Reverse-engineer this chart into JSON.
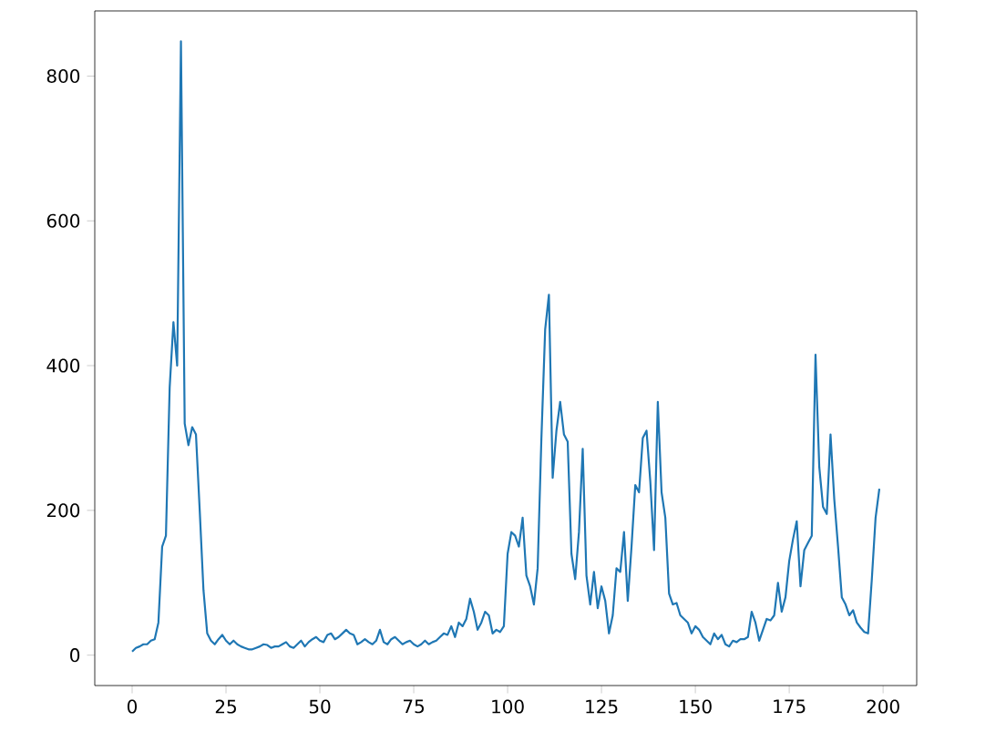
{
  "chart_data": {
    "type": "line",
    "xlim": [
      -9.95,
      208.95
    ],
    "ylim": [
      -42,
      890
    ],
    "xticks": [
      0,
      25,
      50,
      75,
      100,
      125,
      150,
      175,
      200
    ],
    "yticks": [
      0,
      200,
      400,
      600,
      800
    ],
    "grid": false,
    "marker": "none",
    "line_style": "solid",
    "series": [
      {
        "color": "#1f77b4",
        "x": [
          0,
          1,
          2,
          3,
          4,
          5,
          6,
          7,
          8,
          9,
          10,
          11,
          12,
          13,
          14,
          15,
          16,
          17,
          18,
          19,
          20,
          21,
          22,
          23,
          24,
          25,
          26,
          27,
          28,
          29,
          30,
          31,
          32,
          33,
          34,
          35,
          36,
          37,
          38,
          39,
          40,
          41,
          42,
          43,
          44,
          45,
          46,
          47,
          48,
          49,
          50,
          51,
          52,
          53,
          54,
          55,
          56,
          57,
          58,
          59,
          60,
          61,
          62,
          63,
          64,
          65,
          66,
          67,
          68,
          69,
          70,
          71,
          72,
          73,
          74,
          75,
          76,
          77,
          78,
          79,
          80,
          81,
          82,
          83,
          84,
          85,
          86,
          87,
          88,
          89,
          90,
          91,
          92,
          93,
          94,
          95,
          96,
          97,
          98,
          99,
          100,
          101,
          102,
          103,
          104,
          105,
          106,
          107,
          108,
          109,
          110,
          111,
          112,
          113,
          114,
          115,
          116,
          117,
          118,
          119,
          120,
          121,
          122,
          123,
          124,
          125,
          126,
          127,
          128,
          129,
          130,
          131,
          132,
          133,
          134,
          135,
          136,
          137,
          138,
          139,
          140,
          141,
          142,
          143,
          144,
          145,
          146,
          147,
          148,
          149,
          150,
          151,
          152,
          153,
          154,
          155,
          156,
          157,
          158,
          159,
          160,
          161,
          162,
          163,
          164,
          165,
          166,
          167,
          168,
          169,
          170,
          171,
          172,
          173,
          174,
          175,
          176,
          177,
          178,
          179,
          180,
          181,
          182,
          183,
          184,
          185,
          186,
          187,
          188,
          189,
          190,
          191,
          192,
          193,
          194,
          195,
          196,
          197,
          198,
          199
        ],
        "values": [
          5,
          10,
          12,
          15,
          15,
          20,
          22,
          45,
          150,
          165,
          370,
          460,
          400,
          848,
          320,
          290,
          315,
          305,
          200,
          90,
          30,
          20,
          15,
          22,
          28,
          20,
          15,
          20,
          15,
          12,
          10,
          8,
          8,
          10,
          12,
          15,
          14,
          10,
          12,
          12,
          15,
          18,
          12,
          10,
          15,
          20,
          12,
          18,
          22,
          25,
          20,
          18,
          28,
          30,
          22,
          25,
          30,
          35,
          30,
          28,
          15,
          18,
          22,
          18,
          15,
          20,
          35,
          18,
          15,
          22,
          25,
          20,
          15,
          18,
          20,
          15,
          12,
          15,
          20,
          15,
          18,
          20,
          25,
          30,
          28,
          40,
          25,
          45,
          40,
          50,
          78,
          60,
          35,
          45,
          60,
          55,
          30,
          35,
          32,
          40,
          140,
          170,
          165,
          150,
          190,
          110,
          95,
          70,
          120,
          300,
          450,
          498,
          245,
          310,
          350,
          305,
          295,
          140,
          105,
          170,
          285,
          110,
          70,
          115,
          65,
          95,
          75,
          30,
          55,
          120,
          115,
          170,
          75,
          150,
          235,
          225,
          300,
          310,
          240,
          145,
          350,
          225,
          190,
          85,
          70,
          72,
          55,
          50,
          45,
          30,
          40,
          35,
          25,
          20,
          15,
          30,
          22,
          28,
          15,
          12,
          20,
          18,
          22,
          22,
          25,
          60,
          45,
          20,
          35,
          50,
          48,
          55,
          100,
          60,
          80,
          130,
          160,
          185,
          95,
          145,
          155,
          165,
          415,
          260,
          205,
          195,
          305,
          215,
          150,
          80,
          70,
          55,
          62,
          45,
          38,
          32,
          30,
          105,
          190,
          230
        ]
      }
    ]
  }
}
